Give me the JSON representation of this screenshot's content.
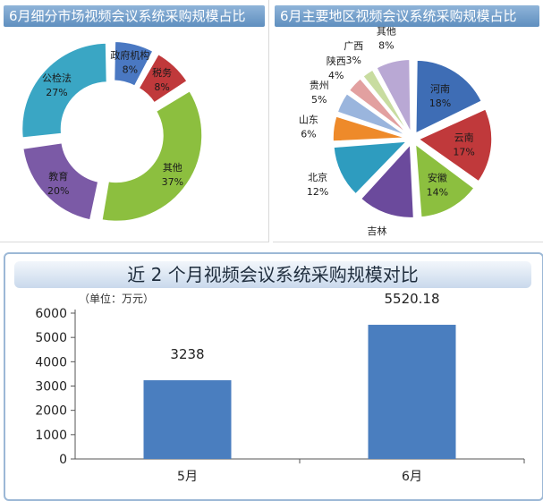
{
  "panels": {
    "p1_title": "6月细分市场视频会议系统采购规模占比",
    "p2_title": "6月主要地区视频会议系统采购规模占比",
    "p3_title": "近 2 个月视频会议系统采购规模对比"
  },
  "chart_data": [
    {
      "type": "pie",
      "variant": "donut",
      "title": "6月细分市场视频会议系统采购规模占比",
      "slices": [
        {
          "label": "政府机构",
          "value": 8,
          "text": "8%",
          "color": "#4a78c2"
        },
        {
          "label": "税务",
          "value": 8,
          "text": "8%",
          "color": "#c0393b"
        },
        {
          "label": "其他",
          "value": 37,
          "text": "37%",
          "color": "#8cbf3f"
        },
        {
          "label": "教育",
          "value": 20,
          "text": "20%",
          "color": "#7b5aa6"
        },
        {
          "label": "公检法",
          "value": 27,
          "text": "27%",
          "color": "#3aa6c4"
        }
      ]
    },
    {
      "type": "pie",
      "title": "6月主要地区视频会议系统采购规模占比",
      "slices": [
        {
          "label": "河南",
          "value": 18,
          "text": "18%",
          "color": "#3e6db5"
        },
        {
          "label": "云南",
          "value": 17,
          "text": "17%",
          "color": "#c0393b"
        },
        {
          "label": "安徽",
          "value": 14,
          "text": "14%",
          "color": "#8cbf3f"
        },
        {
          "label": "吉林",
          "value": 13,
          "text": "13%",
          "color": "#6b4a9c"
        },
        {
          "label": "北京",
          "value": 12,
          "text": "12%",
          "color": "#2e9cbf"
        },
        {
          "label": "山东",
          "value": 6,
          "text": "6%",
          "color": "#ee8a2a"
        },
        {
          "label": "贵州",
          "value": 5,
          "text": "5%",
          "color": "#9ab5dd"
        },
        {
          "label": "陕西",
          "value": 4,
          "text": "4%",
          "color": "#e2a0a0"
        },
        {
          "label": "广西",
          "value": 3,
          "text": "3%",
          "color": "#c8dca0"
        },
        {
          "label": "其他",
          "value": 8,
          "text": "8%",
          "color": "#b9a8d4"
        }
      ]
    },
    {
      "type": "bar",
      "title": "近 2 个月视频会议系统采购规模对比",
      "unit_label": "（单位：万元）",
      "categories": [
        "5月",
        "6月"
      ],
      "values": [
        3238,
        5520.18
      ],
      "value_labels": [
        "3238",
        "5520.18"
      ],
      "ylim": [
        0,
        6000
      ],
      "yticks": [
        0,
        1000,
        2000,
        3000,
        4000,
        5000,
        6000
      ],
      "bar_color": "#4a7ebf",
      "grid": false
    }
  ]
}
